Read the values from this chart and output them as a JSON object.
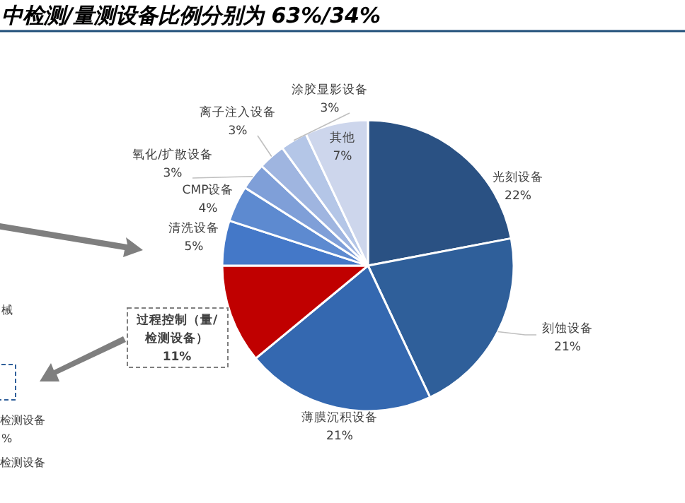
{
  "chart_data": {
    "type": "pie",
    "title": "中检测/量测设备比例分别为 63%/34%",
    "categories": [
      "光刻设备",
      "刻蚀设备",
      "薄膜沉积设备",
      "过程控制（量/检测设备）",
      "清洗设备",
      "CMP设备",
      "氧化/扩散设备",
      "离子注入设备",
      "涂胶显影设备",
      "其他"
    ],
    "values": [
      22,
      21,
      21,
      11,
      5,
      4,
      3,
      3,
      3,
      7
    ],
    "colors": [
      "#2a5183",
      "#2f5f9a",
      "#3468b0",
      "#c00000",
      "#4478c8",
      "#5d8ad0",
      "#7f9fd8",
      "#9fb5e0",
      "#b4c6e7",
      "#cdd6ec"
    ],
    "value_labels": [
      "22%",
      "21%",
      "21%",
      "11%",
      "5%",
      "4%",
      "3%",
      "3%",
      "3%",
      "7%"
    ],
    "annotations": [
      "械",
      "检测设备",
      "%",
      "检测设备"
    ]
  }
}
